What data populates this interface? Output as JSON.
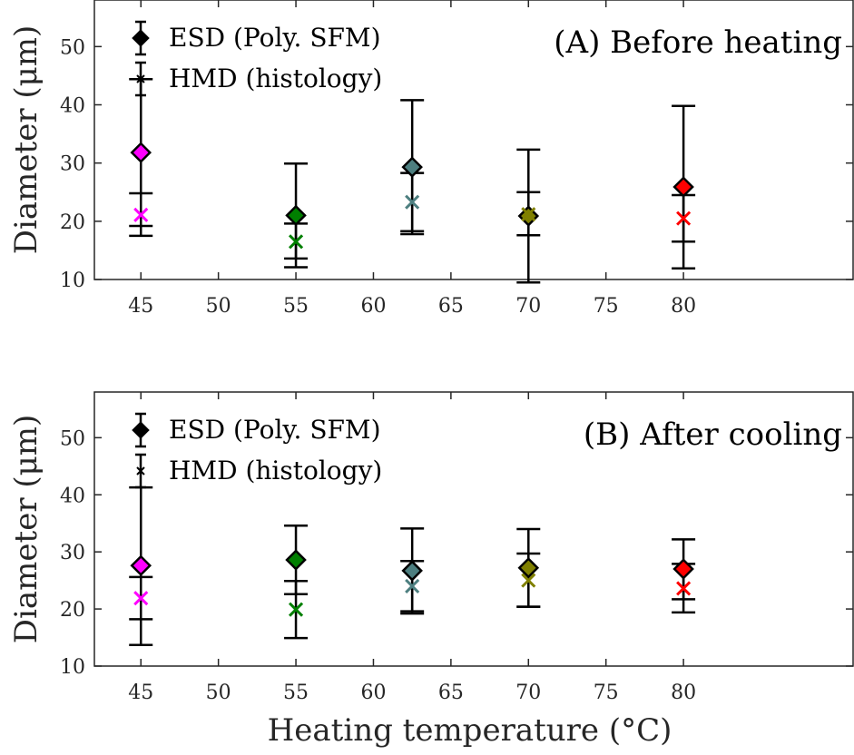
{
  "chart_data": [
    {
      "type": "scatter",
      "title": "(A) Before heating",
      "xlabel": "",
      "ylabel": "Diameter (μm)",
      "xlim": [
        42,
        91
      ],
      "ylim": [
        10,
        58
      ],
      "xticks": [
        45,
        50,
        55,
        60,
        65,
        70,
        75,
        80
      ],
      "yticks": [
        10,
        20,
        30,
        40,
        50
      ],
      "legend": {
        "position": "top-left",
        "entries": [
          "ESD (Poly. SFM)",
          "HMD (histology)"
        ]
      },
      "series": [
        {
          "name": "ESD (Poly. SFM)",
          "marker": "diamond",
          "points": [
            {
              "x": 45,
              "y": 31.8,
              "low": 19.2,
              "high": 44.4,
              "color": "#ff00ff"
            },
            {
              "x": 55,
              "y": 21.0,
              "low": 12.1,
              "high": 29.9,
              "color": "#007f00"
            },
            {
              "x": 62.5,
              "y": 29.3,
              "low": 17.8,
              "high": 40.8,
              "color": "#4d7f80"
            },
            {
              "x": 70,
              "y": 20.9,
              "low": 9.5,
              "high": 32.3,
              "color": "#808000"
            },
            {
              "x": 80,
              "y": 25.9,
              "low": 11.9,
              "high": 39.8,
              "color": "#ff0000"
            }
          ]
        },
        {
          "name": "HMD (histology)",
          "marker": "x",
          "points": [
            {
              "x": 45,
              "y": 21.1,
              "low": 17.5,
              "high": 24.8,
              "color": "#ff00ff"
            },
            {
              "x": 55,
              "y": 16.5,
              "low": 13.6,
              "high": 19.6,
              "color": "#007f00"
            },
            {
              "x": 62.5,
              "y": 23.3,
              "low": 18.3,
              "high": 28.3,
              "color": "#4d7f80"
            },
            {
              "x": 70,
              "y": 21.2,
              "low": 17.6,
              "high": 25.0,
              "color": "#808000"
            },
            {
              "x": 80,
              "y": 20.5,
              "low": 16.5,
              "high": 24.5,
              "color": "#ff0000"
            }
          ]
        }
      ]
    },
    {
      "type": "scatter",
      "title": "(B) After cooling",
      "xlabel": "Heating temperature (°C)",
      "ylabel": "Diameter (μm)",
      "xlim": [
        42,
        91
      ],
      "ylim": [
        10,
        58
      ],
      "xticks": [
        45,
        50,
        55,
        60,
        65,
        70,
        75,
        80
      ],
      "yticks": [
        10,
        20,
        30,
        40,
        50
      ],
      "legend": {
        "position": "top-left",
        "entries": [
          "ESD (Poly. SFM)",
          "HMD (histology)"
        ]
      },
      "series": [
        {
          "name": "ESD (Poly. SFM)",
          "marker": "diamond",
          "points": [
            {
              "x": 45,
              "y": 27.6,
              "low": 13.7,
              "high": 41.3,
              "color": "#ff00ff"
            },
            {
              "x": 55,
              "y": 28.6,
              "low": 22.6,
              "high": 34.6,
              "color": "#007f00"
            },
            {
              "x": 62.5,
              "y": 26.7,
              "low": 19.2,
              "high": 34.1,
              "color": "#4d7f80"
            },
            {
              "x": 70,
              "y": 27.2,
              "low": 20.4,
              "high": 34.0,
              "color": "#808000"
            },
            {
              "x": 80,
              "y": 27.0,
              "low": 21.7,
              "high": 32.2,
              "color": "#ff0000"
            }
          ]
        },
        {
          "name": "HMD (histology)",
          "marker": "x",
          "points": [
            {
              "x": 45,
              "y": 21.9,
              "low": 18.2,
              "high": 25.6,
              "color": "#ff00ff"
            },
            {
              "x": 55,
              "y": 19.9,
              "low": 14.9,
              "high": 24.9,
              "color": "#007f00"
            },
            {
              "x": 62.5,
              "y": 24.0,
              "low": 19.6,
              "high": 28.4,
              "color": "#4d7f80"
            },
            {
              "x": 70,
              "y": 25.0,
              "low": 20.4,
              "high": 29.7,
              "color": "#808000"
            },
            {
              "x": 80,
              "y": 23.6,
              "low": 19.4,
              "high": 27.9,
              "color": "#ff0000"
            }
          ]
        }
      ]
    }
  ]
}
